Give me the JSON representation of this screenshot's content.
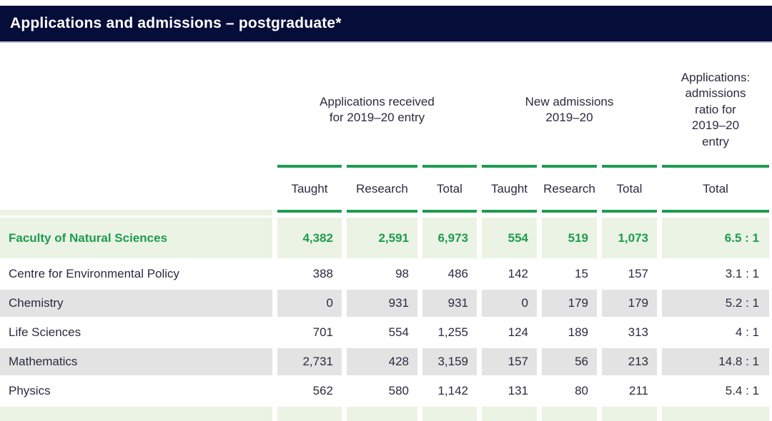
{
  "header": {
    "title": "Applications and admissions – postgraduate*"
  },
  "columns": {
    "group1_lines": [
      "Applications received",
      "for 2019–20 entry"
    ],
    "group2_lines": [
      "New admissions",
      "2019–20"
    ],
    "group3_lines": [
      "Applications:",
      "admissions",
      "ratio for",
      "2019–20",
      "entry"
    ],
    "sub": [
      "Taught",
      "Research",
      "Total",
      "Taught",
      "Research",
      "Total",
      "Total"
    ]
  },
  "rows": [
    {
      "label": "Faculty of Natural Sciences",
      "values": [
        "4,382",
        "2,591",
        "6,973",
        "554",
        "519",
        "1,073",
        "6.5 : 1"
      ]
    },
    {
      "label": "Centre for Environmental Policy",
      "values": [
        "388",
        "98",
        "486",
        "142",
        "15",
        "157",
        "3.1 : 1"
      ]
    },
    {
      "label": "Chemistry",
      "values": [
        "0",
        "931",
        "931",
        "0",
        "179",
        "179",
        "5.2 : 1"
      ]
    },
    {
      "label": "Life Sciences",
      "values": [
        "701",
        "554",
        "1,255",
        "124",
        "189",
        "313",
        "4 : 1"
      ]
    },
    {
      "label": "Mathematics",
      "values": [
        "2,731",
        "428",
        "3,159",
        "157",
        "56",
        "213",
        "14.8 : 1"
      ]
    },
    {
      "label": "Physics",
      "values": [
        "562",
        "580",
        "1,142",
        "131",
        "80",
        "211",
        "5.4 : 1"
      ]
    }
  ],
  "colors": {
    "navy": "#060d38",
    "green": "#1f9b50",
    "light_green": "#eaf3e4",
    "row_gray": "#e3e3e3",
    "text": "#2b2b40"
  }
}
